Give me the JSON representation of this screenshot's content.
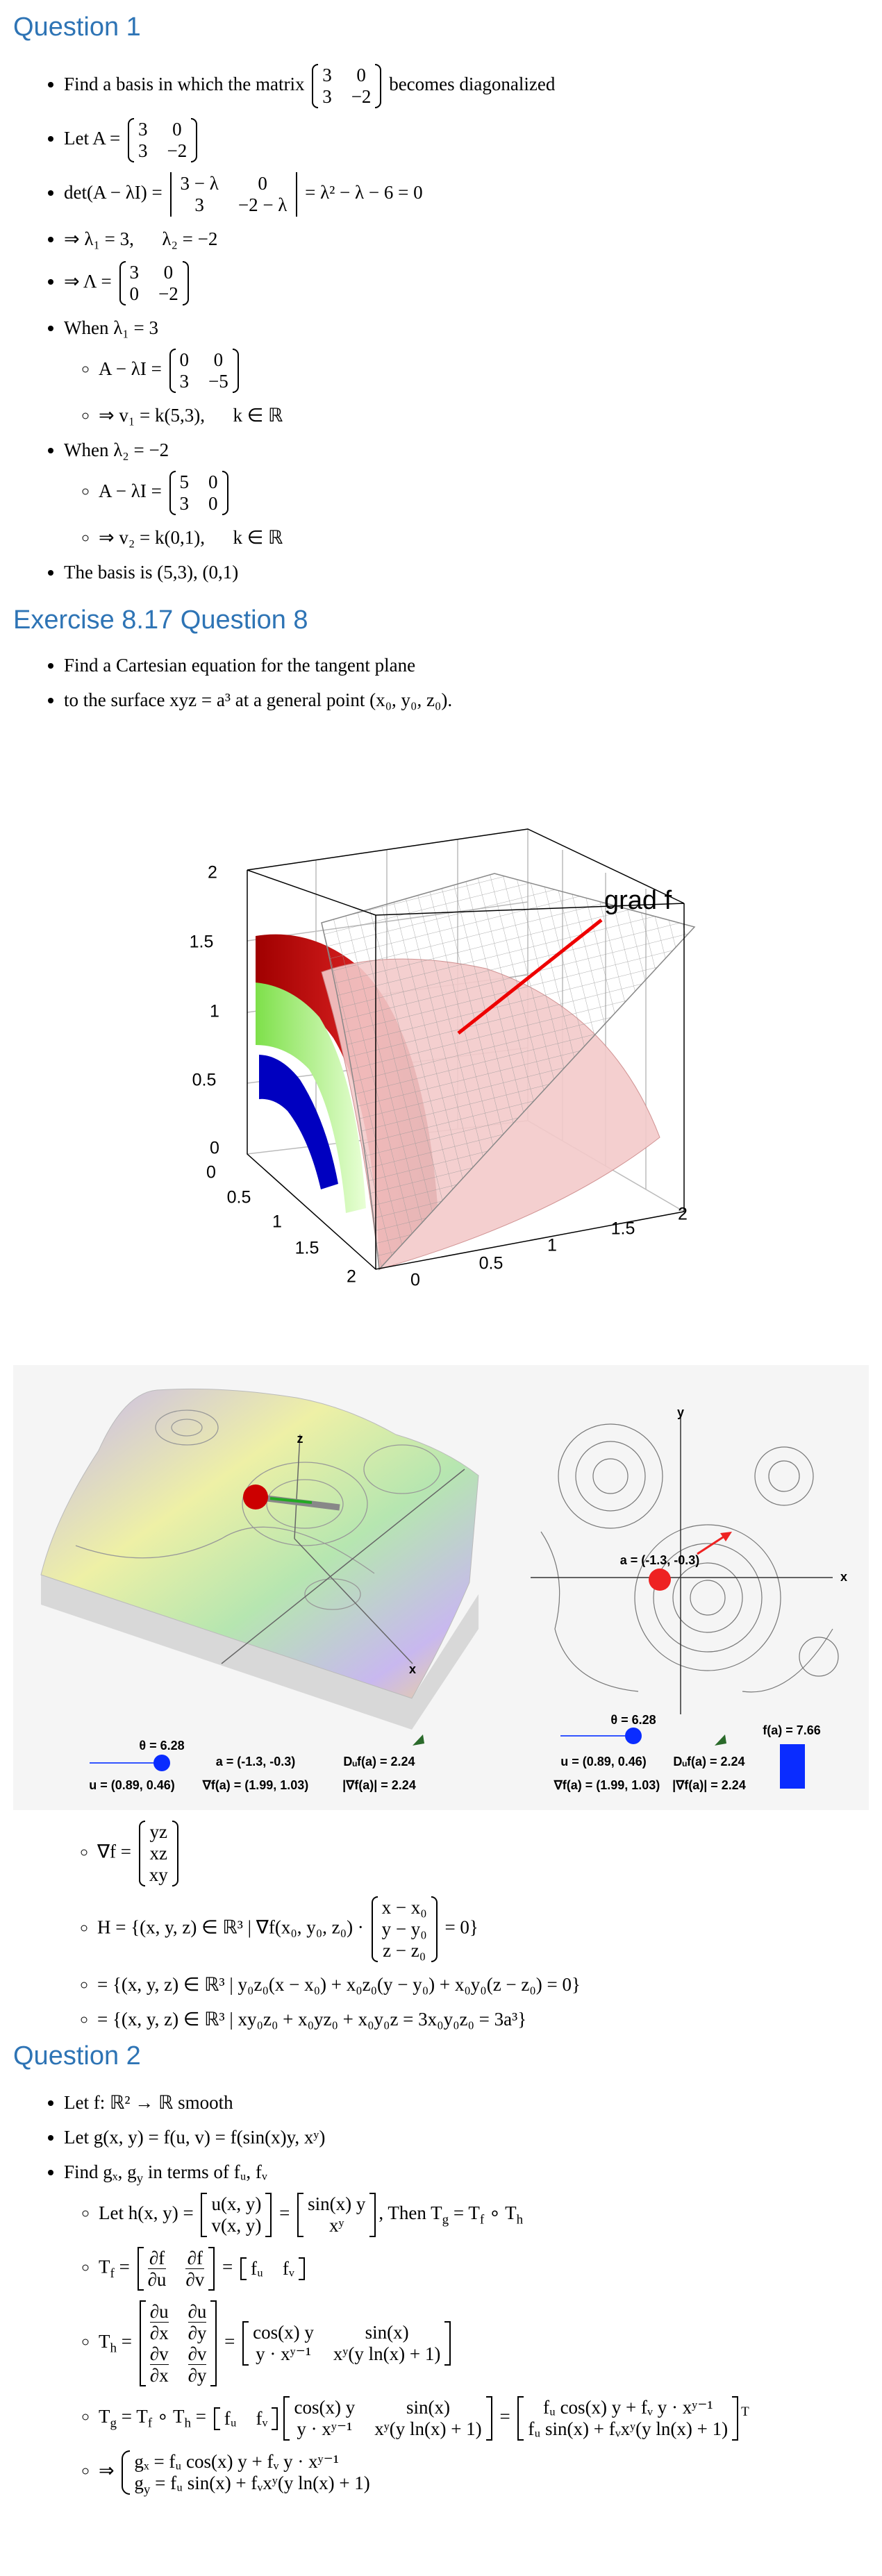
{
  "question_1": {
    "title": "Question 1",
    "items": [
      {
        "parts": [
          "Find a basis in which the matrix ",
          {
            "matrix": [
              [
                "3",
                "0"
              ],
              [
                "3",
                "−2"
              ]
            ],
            "delim": "paren"
          },
          " becomes diagonalized"
        ]
      },
      {
        "parts": [
          "Let A = ",
          {
            "matrix": [
              [
                "3",
                "0"
              ],
              [
                "3",
                "−2"
              ]
            ],
            "delim": "paren"
          }
        ]
      },
      {
        "parts": [
          "det(A − λI) = ",
          {
            "matrix": [
              [
                "3 − λ",
                "0"
              ],
              [
                "3",
                "−2 − λ"
              ]
            ],
            "delim": "bar"
          },
          " = λ² − λ − 6 = 0"
        ]
      },
      {
        "parts": [
          "⇒ λ₁ = 3,      λ₂ = −2"
        ]
      },
      {
        "parts": [
          "⇒ Λ = ",
          {
            "matrix": [
              [
                "3",
                "0"
              ],
              [
                "0",
                "−2"
              ]
            ],
            "delim": "paren"
          }
        ]
      },
      {
        "parts": [
          "When λ₁ = 3"
        ],
        "children": [
          {
            "parts": [
              "A − λI = ",
              {
                "matrix": [
                  [
                    "0",
                    "0"
                  ],
                  [
                    "3",
                    "−5"
                  ]
                ],
                "delim": "paren"
              }
            ]
          },
          {
            "parts": [
              "⇒ v₁ = k(5,3),      k ∈ ℝ"
            ]
          }
        ]
      },
      {
        "parts": [
          "When λ₂ = −2"
        ],
        "children": [
          {
            "parts": [
              "A − λI = ",
              {
                "matrix": [
                  [
                    "5",
                    "0"
                  ],
                  [
                    "3",
                    "0"
                  ]
                ],
                "delim": "paren"
              }
            ]
          },
          {
            "parts": [
              "⇒ v₂ = k(0,1),      k ∈ ℝ"
            ]
          }
        ]
      },
      {
        "parts": [
          "The basis is (5,3), (0,1)"
        ]
      }
    ]
  },
  "exercise": {
    "title": "Exercise 8.17 Question 8",
    "items": [
      {
        "parts": [
          "Find a Cartesian equation for the tangent plane"
        ]
      },
      {
        "parts": [
          "to the surface xyz = a³ at a general point (x₀, y₀, z₀)."
        ]
      }
    ],
    "figure_1": {
      "grad_label": "grad f",
      "z_ticks": [
        "2",
        "1.5",
        "1",
        "0.5",
        "0"
      ],
      "x_ticks": [
        "0",
        "0.5",
        "1",
        "1.5",
        "2"
      ],
      "y_ticks": [
        "0",
        "0.5",
        "1",
        "1.5",
        "2"
      ]
    },
    "figure_2": {
      "left": {
        "z_label": "z",
        "x_label": "x",
        "theta": "θ = 6.28",
        "a": "a = (-1.3, -0.3)",
        "directional": "Dᵤf(a) = 2.24",
        "u": "u = (0.89, 0.46)",
        "gradient": "∇f(a) = (1.99, 1.03)",
        "gradient_norm": "|∇f(a)| = 2.24"
      },
      "right": {
        "y_label": "y",
        "x_label": "x",
        "a": "a = (-1.3, -0.3)",
        "theta": "θ = 6.28",
        "directional": "Dᵤf(a) = 2.24",
        "value": "f(a) = 7.66",
        "u": "u = (0.89, 0.46)",
        "gradient": "∇f(a) = (1.99, 1.03)",
        "gradient_norm": "|∇f(a)| = 2.24"
      }
    },
    "items_after_figures": [
      {
        "parts": [
          "∇f = ",
          {
            "matrix": [
              [
                "yz"
              ],
              [
                "xz"
              ],
              [
                "xy"
              ]
            ],
            "delim": "paren"
          }
        ]
      },
      {
        "parts": [
          "H = {(x, y, z) ∈ ℝ³ | ∇f(x₀, y₀, z₀) · ",
          {
            "matrix": [
              [
                "x − x₀"
              ],
              [
                "y − y₀"
              ],
              [
                "z − z₀"
              ]
            ],
            "delim": "paren"
          },
          " = 0}"
        ]
      },
      {
        "parts": [
          "= {(x, y, z) ∈ ℝ³ | y₀z₀(x − x₀) + x₀z₀(y − y₀) + x₀y₀(z − z₀) = 0}"
        ]
      },
      {
        "parts": [
          "= {(x, y, z) ∈ ℝ³ | xy₀z₀ + x₀yz₀ + x₀y₀z = 3x₀y₀z₀ = 3a³}"
        ]
      }
    ]
  },
  "question_2": {
    "title": "Question 2",
    "items": [
      {
        "parts": [
          "Let f: ℝ² → ℝ smooth"
        ]
      },
      {
        "parts": [
          "Let g(x, y) = f(u, v) = f(sin(x)y, xʸ)"
        ]
      },
      {
        "parts": [
          "Find gₓ, g",
          {
            "sub": "y"
          },
          " in terms of fᵤ, fᵥ"
        ],
        "children": [
          {
            "parts": [
              "Let h(x, y) = ",
              {
                "matrix": [
                  [
                    "u(x, y)"
                  ],
                  [
                    "v(x, y)"
                  ]
                ],
                "delim": "square"
              },
              " = ",
              {
                "matrix": [
                  [
                    "sin(x) y"
                  ],
                  [
                    "xʸ"
                  ]
                ],
                "delim": "square"
              },
              ", Then T",
              {
                "sub": "g"
              },
              " = T",
              {
                "sub": "f"
              },
              " ∘ T",
              {
                "sub": "h"
              }
            ]
          },
          {
            "parts": [
              "T",
              {
                "sub": "f"
              },
              " = ",
              {
                "matrix": [
                  [
                    [
                      {
                        "num": "∂f",
                        "den": "∂u"
                      }
                    ],
                    [
                      {
                        "num": "∂f",
                        "den": "∂v"
                      }
                    ]
                  ]
                ],
                "delim": "square"
              },
              " = ",
              {
                "matrix": [
                  [
                    "fᵤ",
                    "fᵥ"
                  ]
                ],
                "delim": "square"
              }
            ]
          },
          {
            "parts": [
              "T",
              {
                "sub": "h"
              },
              " = ",
              {
                "matrix": [
                  [
                    [
                      {
                        "num": "∂u",
                        "den": "∂x"
                      }
                    ],
                    [
                      {
                        "num": "∂u",
                        "den": "∂y"
                      }
                    ]
                  ],
                  [
                    [
                      {
                        "num": "∂v",
                        "den": "∂x"
                      }
                    ],
                    [
                      {
                        "num": "∂v",
                        "den": "∂y"
                      }
                    ]
                  ]
                ],
                "delim": "square"
              },
              " = ",
              {
                "matrix": [
                  [
                    "cos(x) y",
                    "sin(x)"
                  ],
                  [
                    "y · xʸ⁻¹",
                    "xʸ(y ln(x) + 1)"
                  ]
                ],
                "delim": "square"
              }
            ]
          },
          {
            "parts": [
              "T",
              {
                "sub": "g"
              },
              " = T",
              {
                "sub": "f"
              },
              " ∘ T",
              {
                "sub": "h"
              },
              " = ",
              {
                "matrix": [
                  [
                    "fᵤ",
                    "fᵥ"
                  ]
                ],
                "delim": "square"
              },
              {
                "matrix": [
                  [
                    "cos(x) y",
                    "sin(x)"
                  ],
                  [
                    "y · xʸ⁻¹",
                    "xʸ(y ln(x) + 1)"
                  ]
                ],
                "delim": "square"
              },
              " = ",
              {
                "matrix": [
                  [
                    "fᵤ cos(x) y + fᵥ y · xʸ⁻¹"
                  ],
                  [
                    "fᵤ sin(x) + fᵥxʸ(y ln(x) + 1)"
                  ]
                ],
                "delim": "square"
              },
              {
                "sup": "T"
              }
            ]
          },
          {
            "parts": [
              "⇒ ",
              {
                "matrix": [
                  [
                    "gₓ = fᵤ cos(x) y + fᵥ y · xʸ⁻¹"
                  ],
                  [
                    [
                      "g",
                      {
                        "sub": "y"
                      },
                      " = fᵤ sin(x) + fᵥxʸ(y ln(x) + 1)"
                    ]
                  ]
                ],
                "delim": "brace"
              }
            ]
          }
        ]
      }
    ]
  }
}
